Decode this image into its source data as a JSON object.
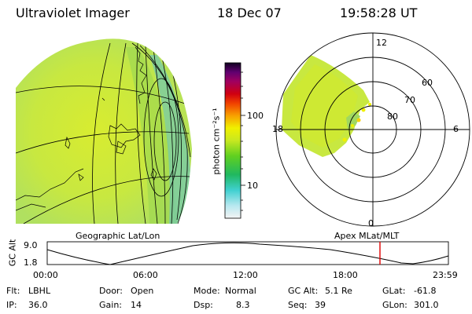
{
  "header": {
    "instrument": "Ultraviolet Imager",
    "date": "18 Dec 07",
    "time": "19:58:28 UT"
  },
  "colorbar": {
    "unit_label": "photon cm⁻²s⁻¹",
    "ticks": [
      "100",
      "10"
    ]
  },
  "projections": {
    "left_label": "Geographic Lat/Lon",
    "right_label": "Apex MLat/MLT"
  },
  "polar": {
    "mlt_labels": [
      "12",
      "18",
      "6",
      "0"
    ],
    "lat_labels": [
      "60",
      "70",
      "80"
    ]
  },
  "altitude_plot": {
    "ylabel": "GC Alt",
    "yticks": [
      "9.0",
      "1.8"
    ],
    "xticks": [
      "00:00",
      "06:00",
      "12:00",
      "18:00",
      "23:59"
    ],
    "marker_color": "#e00000"
  },
  "footer": {
    "row1": [
      {
        "label": "Flt:",
        "value": "LBHL"
      },
      {
        "label": "Door:",
        "value": "Open"
      },
      {
        "label": "Mode:",
        "value": "Normal"
      },
      {
        "label": "GC Alt:",
        "value": "5.1 Re"
      },
      {
        "label": "GLat:",
        "value": "-61.8"
      }
    ],
    "row2": [
      {
        "label": "IP:",
        "value": "36.0"
      },
      {
        "label": "Gain:",
        "value": "14"
      },
      {
        "label": "Dsp:",
        "value": "8.3"
      },
      {
        "label": "Seq:",
        "value": "39"
      },
      {
        "label": "GLon:",
        "value": "301.0"
      }
    ]
  }
}
